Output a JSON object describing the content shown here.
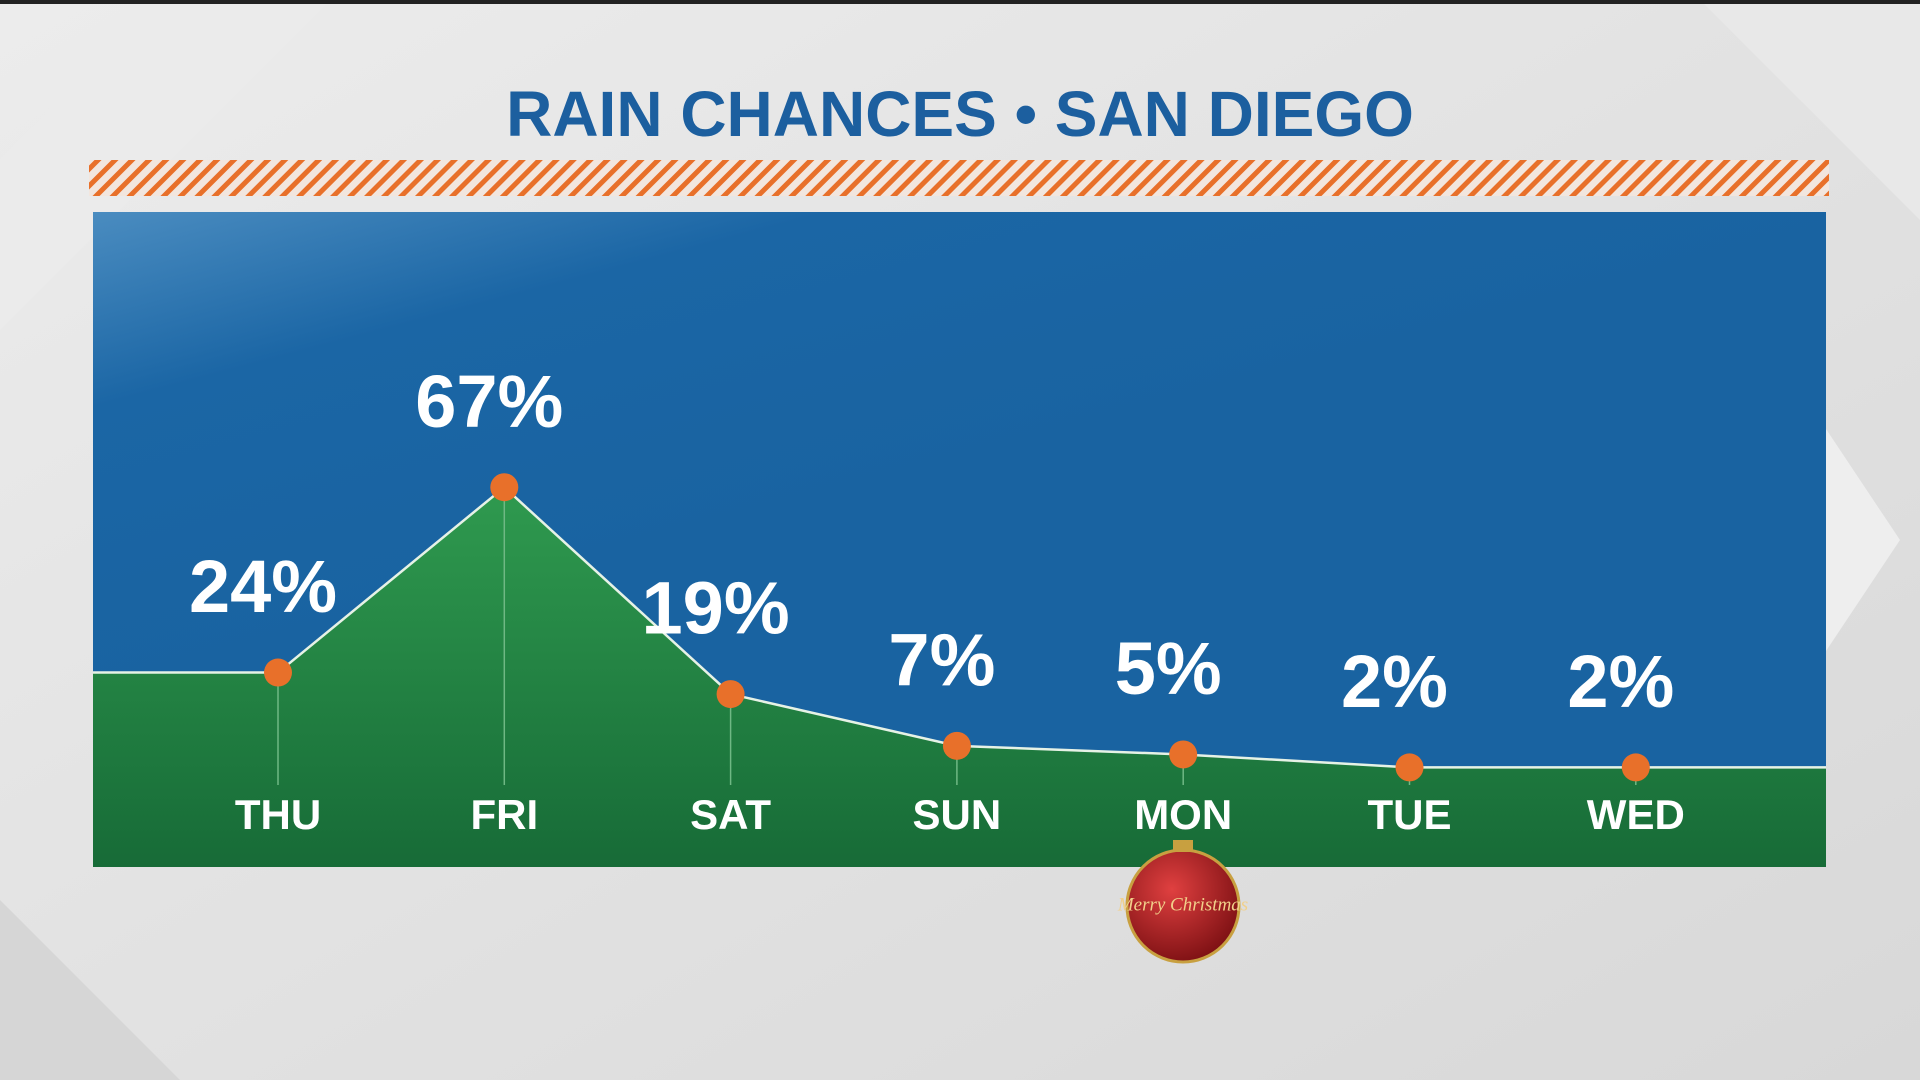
{
  "chart_data": {
    "type": "line",
    "title": "RAIN CHANCES • SAN DIEGO",
    "categories": [
      "THU",
      "FRI",
      "SAT",
      "SUN",
      "MON",
      "TUE",
      "WED"
    ],
    "values": [
      24,
      67,
      19,
      7,
      5,
      2,
      2
    ],
    "value_labels": [
      "24%",
      "67%",
      "19%",
      "7%",
      "5%",
      "2%",
      "2%"
    ],
    "color": "#e8702a"
  },
  "ornament_text": "Merry Christmas"
}
